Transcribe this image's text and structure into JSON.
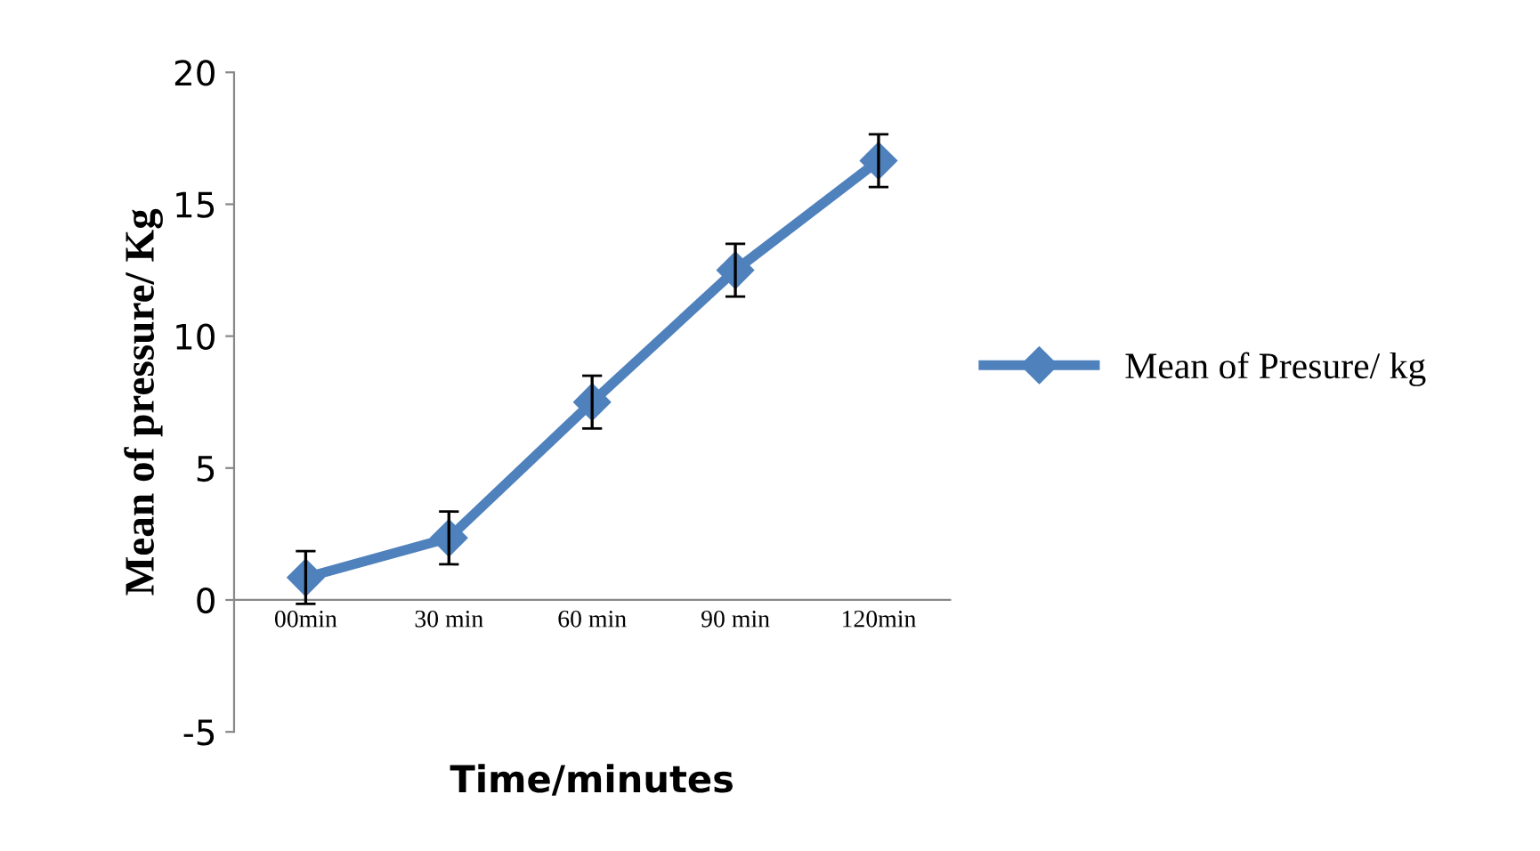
{
  "chart_data": {
    "type": "line",
    "xlabel": "Time/minutes",
    "ylabel": "Mean of pressure/ Kg",
    "categories": [
      "00min",
      "30 min",
      "60 min",
      "90 min",
      "120min"
    ],
    "series": [
      {
        "name": "Mean of Presure/ kg",
        "color": "#4f81bd",
        "values": [
          0.85,
          2.35,
          7.5,
          12.5,
          16.65
        ],
        "errors": [
          1,
          1,
          1,
          1,
          1
        ]
      }
    ],
    "ylim": [
      -5,
      20
    ],
    "yticks": [
      -5,
      0,
      5,
      10,
      15,
      20
    ],
    "marker": "diamond",
    "legend": "right",
    "grid": false
  }
}
